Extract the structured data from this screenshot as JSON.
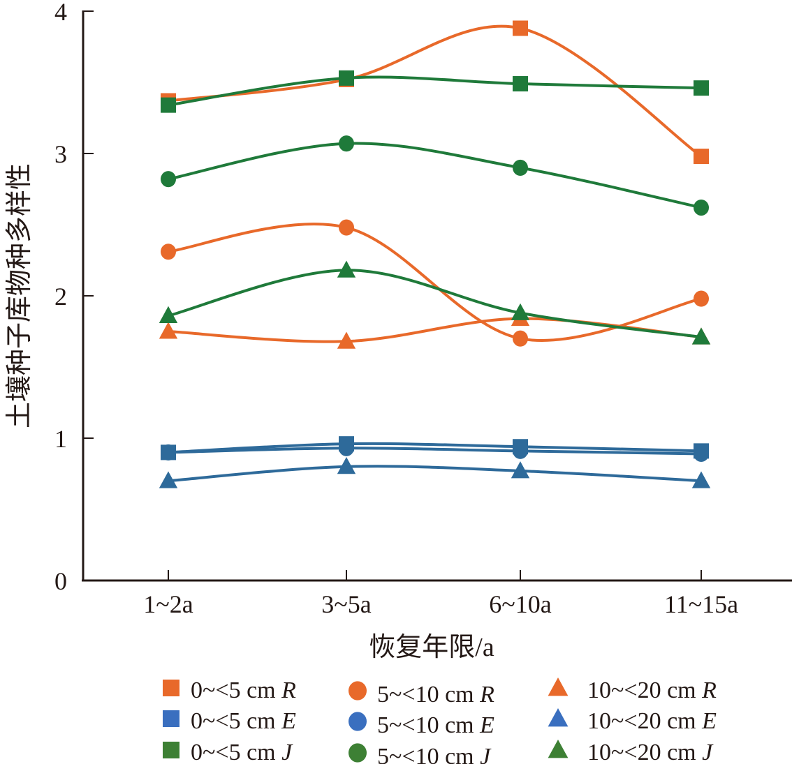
{
  "chart_data": {
    "type": "line",
    "title": "",
    "xlabel": "恢复年限/a",
    "ylabel": "土壤种子库物种多样性",
    "categories": [
      "1~2a",
      "3~5a",
      "6~10a",
      "11~15a"
    ],
    "ylim": [
      0,
      4
    ],
    "yticks": [
      0,
      1,
      2,
      3,
      4
    ],
    "grid": false,
    "smooth": true,
    "legend_position": "bottom",
    "colors": {
      "R": "#e8692a",
      "E": "#2e6a9a",
      "J": "#1f7a3a"
    },
    "legend_colors": {
      "R": "#e8692a",
      "E": "#3a6fbf",
      "J": "#3d8034"
    },
    "series": [
      {
        "name": "0~<5 cm",
        "index": "R",
        "marker": "square",
        "values": [
          3.37,
          3.52,
          3.88,
          2.98
        ]
      },
      {
        "name": "0~<5 cm",
        "index": "E",
        "marker": "square",
        "values": [
          0.9,
          0.96,
          0.94,
          0.91
        ]
      },
      {
        "name": "0~<5 cm",
        "index": "J",
        "marker": "square",
        "values": [
          3.34,
          3.53,
          3.49,
          3.46
        ]
      },
      {
        "name": "5~<10 cm",
        "index": "R",
        "marker": "circle",
        "values": [
          2.31,
          2.48,
          1.7,
          1.98
        ]
      },
      {
        "name": "5~<10 cm",
        "index": "E",
        "marker": "circle",
        "values": [
          0.9,
          0.93,
          0.91,
          0.89
        ]
      },
      {
        "name": "5~<10 cm",
        "index": "J",
        "marker": "circle",
        "values": [
          2.82,
          3.07,
          2.9,
          2.62
        ]
      },
      {
        "name": "10~<20 cm",
        "index": "R",
        "marker": "triangle",
        "values": [
          1.75,
          1.68,
          1.84,
          1.71
        ]
      },
      {
        "name": "10~<20 cm",
        "index": "E",
        "marker": "triangle",
        "values": [
          0.7,
          0.8,
          0.77,
          0.7
        ]
      },
      {
        "name": "10~<20 cm",
        "index": "J",
        "marker": "triangle",
        "values": [
          1.86,
          2.18,
          1.88,
          1.71
        ]
      }
    ]
  }
}
